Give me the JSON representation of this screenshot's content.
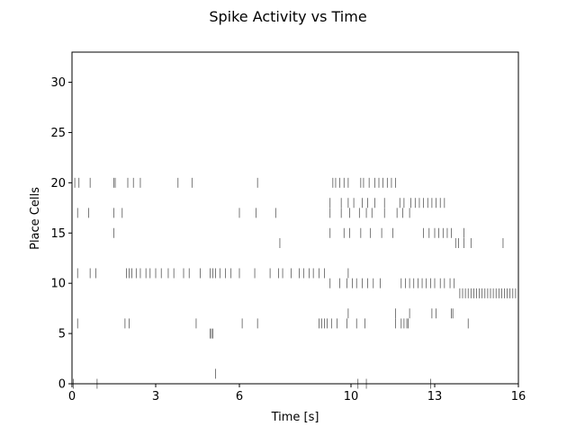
{
  "chart_data": {
    "type": "scatter",
    "marker": "vertical-tick",
    "title": "Spike Activity vs Time",
    "xlabel": "Time [s]",
    "ylabel": "Place Cells",
    "xlim": [
      0,
      16
    ],
    "ylim": [
      0,
      33
    ],
    "xticks": [
      0,
      3,
      6,
      10,
      13,
      16
    ],
    "xticklabels": [
      "0",
      "3",
      "6",
      "10",
      "13",
      "16"
    ],
    "yticks": [
      0,
      5,
      10,
      15,
      20,
      25,
      30
    ],
    "yticklabels": [
      "0",
      "5",
      "10",
      "15",
      "20",
      "25",
      "30"
    ],
    "grid": false,
    "colors": {
      "spike": "#000000",
      "axis": "#000000",
      "background": "#ffffff"
    },
    "series": [
      {
        "cell": 0,
        "times": [
          0.05,
          0.9,
          10.25,
          10.55,
          12.85
        ]
      },
      {
        "cell": 1,
        "times": [
          5.15
        ]
      },
      {
        "cell": 5,
        "times": [
          4.95,
          5.0,
          5.05
        ]
      },
      {
        "cell": 6,
        "times": [
          0.2,
          1.9,
          2.05,
          4.45,
          6.1,
          6.65,
          8.85,
          8.95,
          9.05,
          9.15,
          9.3,
          9.5,
          9.85,
          10.2,
          10.5,
          11.6,
          11.8,
          11.9,
          12.0,
          12.05,
          14.2
        ]
      },
      {
        "cell": 7,
        "times": [
          9.9,
          11.6,
          12.1,
          12.9,
          13.05,
          13.6,
          13.65
        ]
      },
      {
        "cell": 9,
        "times": [
          13.9,
          14.0,
          14.1,
          14.2,
          14.3,
          14.4,
          14.5,
          14.6,
          14.7,
          14.8,
          14.9,
          15.0,
          15.1,
          15.2,
          15.3,
          15.4,
          15.5,
          15.6,
          15.7,
          15.8,
          15.9
        ]
      },
      {
        "cell": 10,
        "times": [
          9.25,
          9.6,
          9.85,
          10.05,
          10.2,
          10.4,
          10.6,
          10.8,
          11.05,
          11.8,
          11.95,
          12.1,
          12.25,
          12.4,
          12.55,
          12.7,
          12.85,
          13.0,
          13.2,
          13.35,
          13.55,
          13.7
        ]
      },
      {
        "cell": 11,
        "times": [
          0.2,
          0.65,
          0.85,
          1.95,
          2.05,
          2.15,
          2.3,
          2.45,
          2.65,
          2.8,
          3.0,
          3.2,
          3.45,
          3.65,
          4.0,
          4.2,
          4.6,
          4.95,
          5.05,
          5.15,
          5.3,
          5.5,
          5.7,
          6.0,
          6.55,
          7.1,
          7.4,
          7.55,
          7.85,
          8.15,
          8.3,
          8.5,
          8.65,
          8.85,
          9.05,
          9.9
        ]
      },
      {
        "cell": 14,
        "times": [
          7.45,
          13.75,
          13.85,
          14.05,
          14.3,
          15.45
        ]
      },
      {
        "cell": 15,
        "times": [
          1.5,
          9.25,
          9.75,
          9.95,
          10.35,
          10.7,
          11.1,
          11.5,
          12.6,
          12.8,
          13.0,
          13.15,
          13.3,
          13.45,
          13.6,
          14.05
        ]
      },
      {
        "cell": 17,
        "times": [
          0.2,
          0.6,
          1.5,
          1.8,
          6.0,
          6.6,
          7.3,
          9.25,
          9.65,
          9.95,
          10.3,
          10.55,
          10.75,
          11.2,
          11.65,
          11.85,
          12.1
        ]
      },
      {
        "cell": 18,
        "times": [
          9.25,
          9.65,
          9.9,
          10.1,
          10.4,
          10.6,
          10.85,
          11.2,
          11.75,
          11.9,
          12.15,
          12.3,
          12.45,
          12.6,
          12.75,
          12.9,
          13.05,
          13.2,
          13.35
        ]
      },
      {
        "cell": 20,
        "times": [
          0.1,
          0.25,
          0.65,
          1.5,
          1.55,
          2.0,
          2.2,
          2.45,
          3.8,
          4.3,
          6.65,
          9.35,
          9.45,
          9.6,
          9.75,
          9.9,
          10.35,
          10.45,
          10.65,
          10.85,
          11.0,
          11.15,
          11.3,
          11.45,
          11.6
        ]
      }
    ]
  }
}
